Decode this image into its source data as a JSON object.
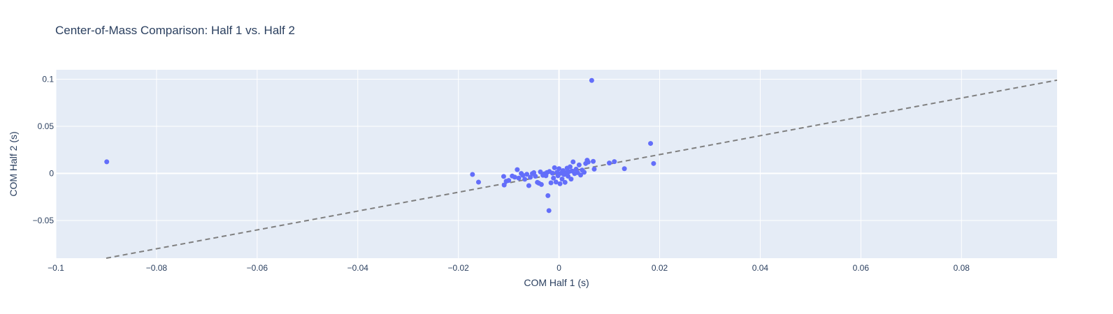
{
  "chart_data": {
    "type": "scatter",
    "title": "Center-of-Mass Comparison: Half 1 vs. Half 2",
    "xlabel": "COM Half 1 (s)",
    "ylabel": "COM Half 2 (s)",
    "xlim": [
      -0.1,
      0.099
    ],
    "ylim": [
      -0.09,
      0.11
    ],
    "grid": true,
    "legend": "none",
    "x_ticks": [
      "−0.1",
      "−0.08",
      "−0.06",
      "−0.04",
      "−0.02",
      "0",
      "0.02",
      "0.04",
      "0.06",
      "0.08"
    ],
    "x_tick_values": [
      -0.1,
      -0.08,
      -0.06,
      -0.04,
      -0.02,
      0,
      0.02,
      0.04,
      0.06,
      0.08
    ],
    "y_ticks": [
      "−0.05",
      "0",
      "0.05",
      "0.1"
    ],
    "y_tick_values": [
      -0.05,
      0,
      0.05,
      0.1
    ],
    "colors": {
      "points": "#636efa",
      "reference_line": "#7f7f7f",
      "plot_bg": "#e5ecf6",
      "grid": "#ffffff",
      "text": "#2a3f5f"
    },
    "reference_line": {
      "style": "dashed",
      "x": [
        -0.09,
        0.099
      ],
      "y": [
        -0.09,
        0.099
      ]
    },
    "series": [
      {
        "points": [
          [
            -0.0899,
            0.0123
          ],
          [
            0.0065,
            0.0987
          ],
          [
            -0.0172,
            -0.0011
          ],
          [
            -0.016,
            -0.0093
          ],
          [
            -0.011,
            -0.0032
          ],
          [
            -0.0109,
            -0.0123
          ],
          [
            -0.0105,
            -0.0083
          ],
          [
            -0.01,
            -0.0075
          ],
          [
            -0.0093,
            -0.0028
          ],
          [
            -0.0088,
            -0.004
          ],
          [
            -0.0083,
            0.004
          ],
          [
            -0.008,
            -0.005
          ],
          [
            -0.0075,
            -0.0001
          ],
          [
            -0.0072,
            -0.002
          ],
          [
            -0.0068,
            -0.0062
          ],
          [
            -0.0064,
            -0.0009
          ],
          [
            -0.006,
            -0.013
          ],
          [
            -0.0057,
            -0.0041
          ],
          [
            -0.0053,
            -0.0002
          ],
          [
            -0.005,
            0.0008
          ],
          [
            -0.0047,
            -0.003
          ],
          [
            -0.0043,
            -0.0095
          ],
          [
            -0.004,
            -0.0104
          ],
          [
            -0.0037,
            0.0016
          ],
          [
            -0.0035,
            -0.0118
          ],
          [
            -0.0032,
            -0.002
          ],
          [
            -0.0029,
            -0.0005
          ],
          [
            -0.0026,
            -0.0025
          ],
          [
            -0.0024,
            0.0009
          ],
          [
            -0.0022,
            -0.0236
          ],
          [
            -0.002,
            -0.0395
          ],
          [
            -0.0019,
            0.002
          ],
          [
            -0.0016,
            -0.01
          ],
          [
            -0.0013,
            0.0003
          ],
          [
            -0.0011,
            -0.005
          ],
          [
            -0.0009,
            0.006
          ],
          [
            -0.0006,
            -0.0092
          ],
          [
            -0.0004,
            0.0012
          ],
          [
            -0.0002,
            -0.0025
          ],
          [
            0.0,
            0.005
          ],
          [
            0.0002,
            -0.011
          ],
          [
            0.0004,
            0.0002
          ],
          [
            0.0006,
            -0.006
          ],
          [
            0.0008,
            0.003
          ],
          [
            0.001,
            -0.0012
          ],
          [
            0.0012,
            -0.0095
          ],
          [
            0.0014,
            0.0008
          ],
          [
            0.0016,
            0.0056
          ],
          [
            0.0018,
            -0.003
          ],
          [
            0.002,
            0.0018
          ],
          [
            0.0022,
            0.007
          ],
          [
            0.0024,
            -0.006
          ],
          [
            0.0026,
            0.0025
          ],
          [
            0.0028,
            0.0122
          ],
          [
            0.0031,
            -0.0002
          ],
          [
            0.0034,
            0.0045
          ],
          [
            0.0037,
            0.0008
          ],
          [
            0.004,
            0.009
          ],
          [
            0.0043,
            -0.0018
          ],
          [
            0.0046,
            0.0035
          ],
          [
            0.005,
            0.0012
          ],
          [
            0.0053,
            0.0105
          ],
          [
            0.0056,
            0.014
          ],
          [
            0.0058,
            0.012
          ],
          [
            0.0068,
            0.0128
          ],
          [
            0.007,
            0.0045
          ],
          [
            0.01,
            0.011
          ],
          [
            0.011,
            0.0125
          ],
          [
            0.013,
            0.005
          ],
          [
            0.0182,
            0.0318
          ],
          [
            0.0188,
            0.0105
          ]
        ]
      }
    ]
  }
}
